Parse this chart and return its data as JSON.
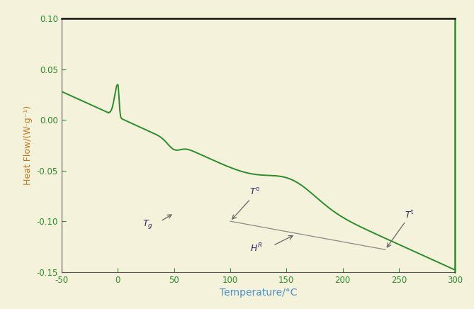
{
  "background_color": "#f5f2dc",
  "plot_bg_color": "#f5f2dc",
  "line_color": "#2a8c2a",
  "xlabel": "Temperature/°C",
  "ylabel": "Heat Flow/(W·g⁻¹)",
  "xlabel_color": "#4a90c8",
  "ylabel_color": "#c87820",
  "tick_label_color": "#555555",
  "xlim": [
    -50,
    300
  ],
  "ylim": [
    -0.15,
    0.1
  ],
  "xticks": [
    -50,
    0,
    50,
    100,
    150,
    200,
    250,
    300
  ],
  "yticks": [
    -0.15,
    -0.1,
    -0.05,
    0.0,
    0.05,
    0.1
  ],
  "figsize": [
    6.69,
    4.36
  ],
  "dpi": 100
}
